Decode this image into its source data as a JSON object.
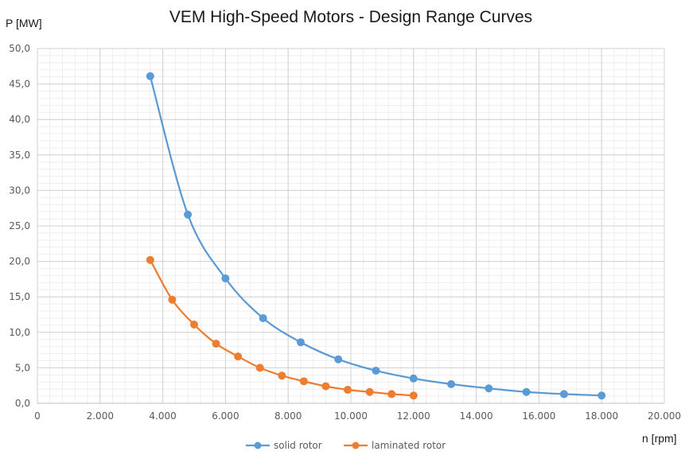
{
  "chart_data": {
    "type": "line",
    "title": "VEM High-Speed Motors - Design Range Curves",
    "ylabel": "P [MW]",
    "xlabel": "n [rpm]",
    "xlim": [
      0,
      20000
    ],
    "ylim": [
      0,
      50
    ],
    "x_ticks": [
      0,
      2000,
      4000,
      6000,
      8000,
      10000,
      12000,
      14000,
      16000,
      18000,
      20000
    ],
    "x_tick_labels": [
      "0",
      "2.000",
      "4.000",
      "6.000",
      "8.000",
      "10.000",
      "12.000",
      "14.000",
      "16.000",
      "18.000",
      "20.000"
    ],
    "y_ticks": [
      0,
      5,
      10,
      15,
      20,
      25,
      30,
      35,
      40,
      45,
      50
    ],
    "y_tick_labels": [
      "0,0",
      "5,0",
      "10,0",
      "15,0",
      "20,0",
      "25,0",
      "30,0",
      "35,0",
      "40,0",
      "45,0",
      "50,0"
    ],
    "grid": "major and minor",
    "legend": "bottom",
    "series": [
      {
        "name": "solid rotor",
        "color": "#5b9bd5",
        "x": [
          3600,
          4800,
          6000,
          7200,
          8400,
          9600,
          10800,
          12000,
          13200,
          14400,
          15600,
          16800,
          18000
        ],
        "y": [
          46.1,
          26.6,
          17.6,
          12.0,
          8.6,
          6.2,
          4.6,
          3.5,
          2.7,
          2.1,
          1.6,
          1.3,
          1.1
        ]
      },
      {
        "name": "laminated rotor",
        "color": "#ed7d31",
        "x": [
          3600,
          4300,
          5000,
          5700,
          6400,
          7100,
          7800,
          8500,
          9200,
          9900,
          10600,
          11300,
          12000
        ],
        "y": [
          20.2,
          14.6,
          11.1,
          8.4,
          6.6,
          5.0,
          3.9,
          3.1,
          2.4,
          1.9,
          1.6,
          1.3,
          1.1
        ]
      }
    ]
  }
}
